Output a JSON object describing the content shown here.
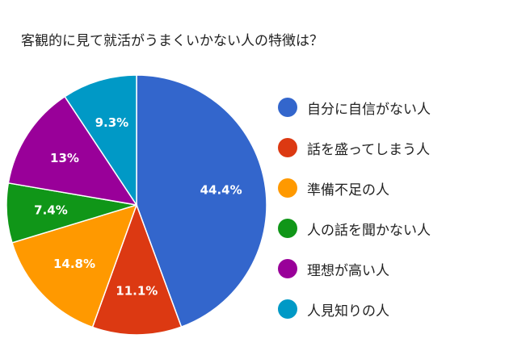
{
  "title": "客観的に見て就活がうまくいかない人の特徴は？",
  "chart_data": {
    "type": "pie",
    "title": "客観的に見て就活がうまくいかない人の特徴は？",
    "categories": [
      "自分に自信がない人",
      "話を盛ってしまう人",
      "準備不足の人",
      "人の話を聞かない人",
      "理想が高い人",
      "人見知りの人"
    ],
    "values": [
      44.4,
      11.1,
      14.8,
      7.4,
      13,
      9.3
    ],
    "value_labels": [
      "44.4%",
      "11.1%",
      "14.8%",
      "7.4%",
      "13%",
      "9.3%"
    ],
    "colors": [
      "#3366cc",
      "#dc3912",
      "#ff9900",
      "#109618",
      "#990099",
      "#0099c6"
    ],
    "legend": "right"
  }
}
